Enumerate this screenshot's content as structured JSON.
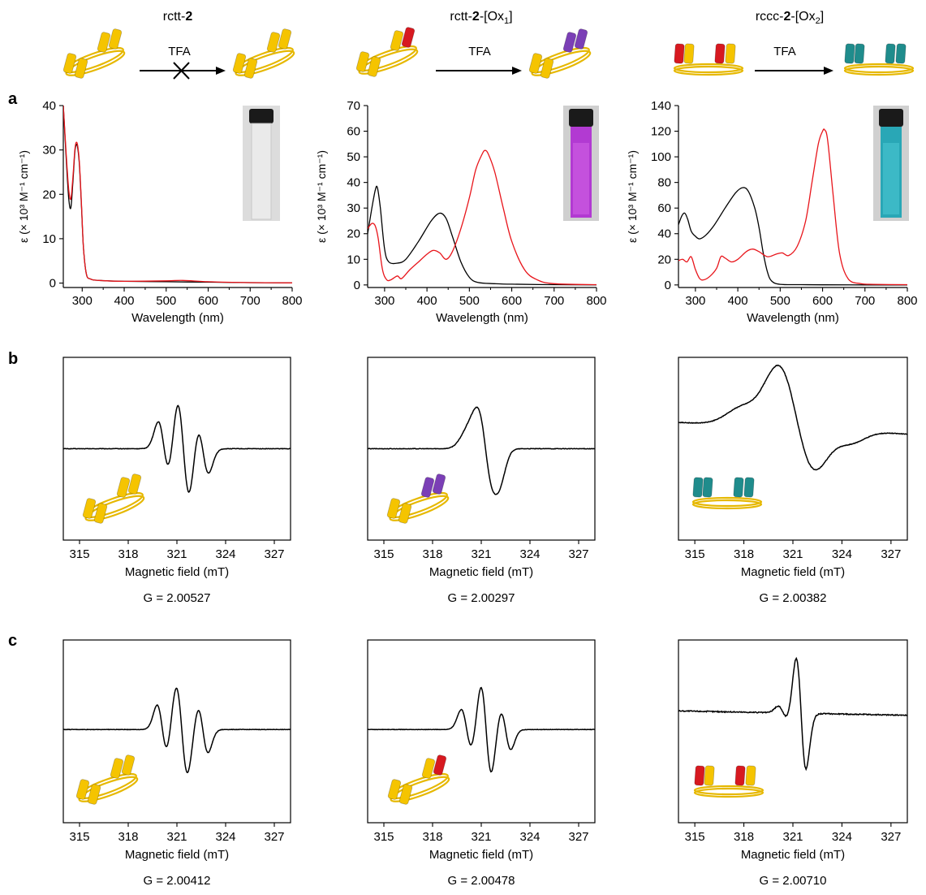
{
  "header": {
    "compounds": [
      {
        "prefix": "rctt-",
        "bold": "2",
        "suffix": "",
        "sub": ""
      },
      {
        "prefix": "rctt-",
        "bold": "2",
        "suffix": "-[Ox",
        "sub": "1",
        "close": "]"
      },
      {
        "prefix": "rccc-",
        "bold": "2",
        "suffix": "-[Ox",
        "sub": "2",
        "close": "]"
      }
    ],
    "reagent": "TFA"
  },
  "panel_letters": [
    "a",
    "b",
    "c"
  ],
  "axis_text": {
    "wavelength": "Wavelength (nm)",
    "epsilon": "ε (× 10³ M⁻¹ cm⁻¹)",
    "field": "Magnetic field (mT)"
  },
  "colors": {
    "yellow": "#F5C400",
    "red": "#D71920",
    "purple": "#7B3FB6",
    "teal": "#1F8C8C",
    "ring": "#E6B800",
    "line_black": "#000000",
    "line_red": "#E8151B"
  },
  "icons": [
    "rctt-2-yellow",
    "rctt-2-ox1-red-yellow",
    "rccc-2-ox2-red-yellow",
    "rctt-2-purple-yellow",
    "rccc-2-teal",
    "vial-colorless",
    "vial-purple",
    "vial-blue"
  ],
  "chart_data": [
    {
      "type": "line",
      "panel": "a",
      "compound": "rctt-2",
      "xlabel": "Wavelength (nm)",
      "ylabel": "ε (× 10³ M⁻¹ cm⁻¹)",
      "xlim": [
        255,
        800
      ],
      "ylim": [
        -1,
        40
      ],
      "xticks": [
        300,
        400,
        500,
        600,
        700,
        800
      ],
      "yticks": [
        0,
        10,
        20,
        30,
        40
      ],
      "series": [
        {
          "color": "#000000",
          "x": [
            255,
            262,
            268,
            273,
            278,
            283,
            288,
            293,
            298,
            303,
            310,
            320,
            340,
            400,
            500,
            600,
            700,
            800
          ],
          "y": [
            40,
            28,
            19,
            17,
            23,
            30,
            31,
            27,
            18,
            8,
            2,
            0.9,
            0.6,
            0.4,
            0.3,
            0.2,
            0.1,
            0.05
          ]
        },
        {
          "color": "#E8151B",
          "x": [
            255,
            262,
            268,
            273,
            278,
            283,
            288,
            293,
            298,
            303,
            310,
            320,
            340,
            400,
            500,
            540,
            600,
            700,
            800
          ],
          "y": [
            40,
            29,
            21,
            19,
            24,
            30.5,
            31.5,
            27.5,
            18.5,
            8,
            2,
            0.9,
            0.6,
            0.4,
            0.5,
            0.6,
            0.3,
            0.1,
            0.05
          ]
        }
      ]
    },
    {
      "type": "line",
      "panel": "a",
      "compound": "rctt-2-[Ox1]",
      "xlabel": "Wavelength (nm)",
      "ylabel": "ε (× 10³ M⁻¹ cm⁻¹)",
      "xlim": [
        260,
        800
      ],
      "ylim": [
        -1,
        70
      ],
      "xticks": [
        300,
        400,
        500,
        600,
        700,
        800
      ],
      "yticks": [
        0,
        10,
        20,
        30,
        40,
        50,
        60,
        70
      ],
      "series": [
        {
          "color": "#000000",
          "x": [
            260,
            270,
            278,
            283,
            290,
            300,
            310,
            330,
            350,
            380,
            410,
            430,
            445,
            460,
            480,
            500,
            520,
            560,
            600,
            700,
            800
          ],
          "y": [
            20,
            30,
            37,
            38,
            30,
            14,
            9,
            8.5,
            10,
            17,
            25,
            28,
            26,
            19,
            9,
            3,
            1,
            0.5,
            0.3,
            0.1,
            0.05
          ]
        },
        {
          "color": "#E8151B",
          "x": [
            260,
            270,
            278,
            285,
            295,
            305,
            315,
            330,
            340,
            360,
            380,
            400,
            415,
            430,
            445,
            460,
            480,
            500,
            515,
            530,
            537,
            545,
            560,
            580,
            600,
            630,
            660,
            700,
            800
          ],
          "y": [
            22,
            24,
            23,
            18,
            6,
            2,
            2,
            3.5,
            2.5,
            6,
            9,
            12,
            13.5,
            12.5,
            10,
            13,
            22,
            34,
            45,
            51,
            52.5,
            51,
            44,
            30,
            17,
            6,
            2,
            0.5,
            0.1
          ]
        }
      ]
    },
    {
      "type": "line",
      "panel": "a",
      "compound": "rccc-2-[Ox2]",
      "xlabel": "Wavelength (nm)",
      "ylabel": "ε (× 10³ M⁻¹ cm⁻¹)",
      "xlim": [
        260,
        800
      ],
      "ylim": [
        -2,
        140
      ],
      "xticks": [
        300,
        400,
        500,
        600,
        700,
        800
      ],
      "yticks": [
        0,
        20,
        40,
        60,
        80,
        100,
        120,
        140
      ],
      "series": [
        {
          "color": "#000000",
          "x": [
            260,
            268,
            275,
            282,
            290,
            300,
            310,
            325,
            345,
            370,
            395,
            412,
            425,
            440,
            450,
            460,
            470,
            480,
            500,
            550,
            600,
            700,
            800
          ],
          "y": [
            47,
            54,
            56,
            51,
            42,
            38,
            36,
            39,
            47,
            60,
            72,
            76,
            73,
            60,
            45,
            25,
            10,
            3,
            0.5,
            0.2,
            0.1,
            0.05,
            0.05
          ]
        },
        {
          "color": "#E8151B",
          "x": [
            260,
            270,
            280,
            290,
            300,
            310,
            320,
            335,
            350,
            360,
            370,
            385,
            400,
            420,
            435,
            450,
            470,
            490,
            505,
            520,
            540,
            560,
            575,
            590,
            600,
            605,
            612,
            625,
            640,
            660,
            690,
            720,
            800
          ],
          "y": [
            19,
            20,
            18,
            22,
            12,
            5,
            4,
            7,
            13,
            22,
            21,
            18,
            20,
            26,
            28,
            26,
            22,
            24,
            25,
            23,
            30,
            50,
            80,
            110,
            120,
            121,
            113,
            70,
            25,
            5,
            1,
            0.5,
            0.2
          ]
        }
      ]
    },
    {
      "type": "line",
      "panel": "b",
      "compound": "rctt-2",
      "g_label": "G = 2.00527",
      "xlabel": "Magnetic field (mT)",
      "xlim": [
        314,
        328
      ],
      "xticks": [
        315,
        318,
        321,
        324,
        327
      ]
    },
    {
      "type": "line",
      "panel": "b",
      "compound": "rctt-2-[Ox1]",
      "g_label": "G = 2.00297",
      "xlabel": "Magnetic field (mT)",
      "xlim": [
        314,
        328
      ],
      "xticks": [
        315,
        318,
        321,
        324,
        327
      ]
    },
    {
      "type": "line",
      "panel": "b",
      "compound": "rccc-2-[Ox2]",
      "g_label": "G = 2.00382",
      "xlabel": "Magnetic field (mT)",
      "xlim": [
        314,
        328
      ],
      "xticks": [
        315,
        318,
        321,
        324,
        327
      ]
    },
    {
      "type": "line",
      "panel": "c",
      "compound": "rctt-2",
      "g_label": "G = 2.00412",
      "xlabel": "Magnetic field (mT)",
      "xlim": [
        314,
        328
      ],
      "xticks": [
        315,
        318,
        321,
        324,
        327
      ]
    },
    {
      "type": "line",
      "panel": "c",
      "compound": "rctt-2-[Ox1]",
      "g_label": "G = 2.00478",
      "xlabel": "Magnetic field (mT)",
      "xlim": [
        314,
        328
      ],
      "xticks": [
        315,
        318,
        321,
        324,
        327
      ]
    },
    {
      "type": "line",
      "panel": "c",
      "compound": "rccc-2-[Ox2]",
      "g_label": "G = 2.00710",
      "xlabel": "Magnetic field (mT)",
      "xlim": [
        314,
        328
      ],
      "xticks": [
        315,
        318,
        321,
        324,
        327
      ]
    }
  ]
}
